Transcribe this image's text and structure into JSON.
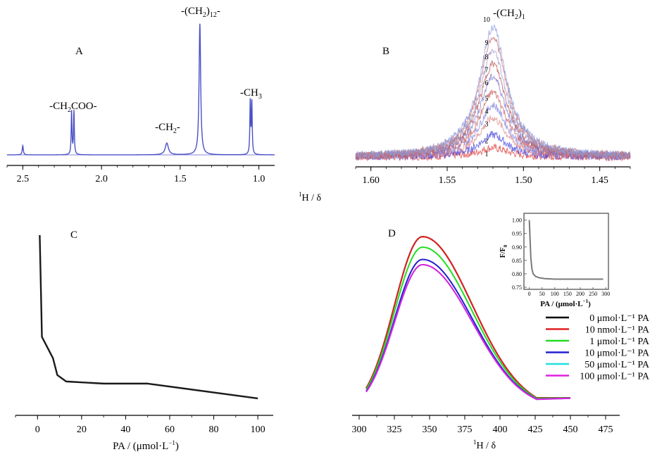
{
  "panels": {
    "A": {
      "label": "A",
      "type": "line",
      "peak_labels": [
        {
          "pre": "-CH",
          "sub1": "2",
          "mid": "COO-",
          "sub2": "",
          "post": "",
          "x": 2.18
        },
        {
          "pre": "-CH",
          "sub1": "2",
          "mid": "-",
          "sub2": "",
          "post": "",
          "x": 1.58
        },
        {
          "pre": "-(CH",
          "sub1": "2",
          "mid": ")",
          "sub2": "12",
          "post": "-",
          "x": 1.37
        },
        {
          "pre": "-CH",
          "sub1": "3",
          "mid": "",
          "sub2": "",
          "post": "",
          "x": 1.05
        }
      ],
      "peaks": [
        {
          "x": 2.5,
          "h": 0.07,
          "w": 0.004
        },
        {
          "x": 2.19,
          "h": 0.33,
          "w": 0.003
        },
        {
          "x": 2.175,
          "h": 0.33,
          "w": 0.003
        },
        {
          "x": 1.585,
          "h": 0.09,
          "w": 0.012
        },
        {
          "x": 1.375,
          "h": 1.0,
          "w": 0.006
        },
        {
          "x": 1.055,
          "h": 0.4,
          "w": 0.003
        },
        {
          "x": 1.045,
          "h": 0.4,
          "w": 0.003
        }
      ],
      "xlim": [
        2.6,
        0.9
      ],
      "ylim": [
        0,
        1.02
      ],
      "xticks": [
        2.5,
        2.0,
        1.5,
        1.0
      ],
      "xtick_labels": [
        "2.5",
        "2.0",
        "1.5",
        "1.0"
      ],
      "color": "#4a50c6"
    },
    "B": {
      "label": "B",
      "type": "line",
      "title_pre": "-(CH",
      "title_sub": "2",
      "title_post": ")",
      "title_sub2": "1",
      "series_labels": [
        "1",
        "2",
        "3",
        "4",
        "5",
        "6",
        "7",
        "8",
        "9",
        "10"
      ],
      "peak_center": 1.52,
      "peak_width": 0.011,
      "heights": [
        0.07,
        0.17,
        0.3,
        0.4,
        0.5,
        0.62,
        0.72,
        0.82,
        0.93,
        1.0
      ],
      "colors": [
        "#d44",
        "#44d",
        "#d88",
        "#88d",
        "#c66",
        "#77c",
        "#b55",
        "#99c",
        "#c77",
        "#8899dd"
      ],
      "xlim": [
        1.61,
        1.43
      ],
      "ylim": [
        -0.05,
        1.05
      ],
      "xticks": [
        1.6,
        1.55,
        1.5,
        1.45
      ],
      "xtick_labels": [
        "1.60",
        "1.55",
        "1.50",
        "1.45"
      ],
      "xlabel_pre": "1",
      "xlabel_post": "H / δ"
    },
    "C": {
      "label": "C",
      "type": "line",
      "x": [
        1,
        2,
        7,
        9,
        13,
        30,
        50,
        100
      ],
      "y": [
        1.0,
        0.52,
        0.42,
        0.34,
        0.31,
        0.3,
        0.3,
        0.23
      ],
      "xlim": [
        -10,
        107
      ],
      "ylim": [
        0.2,
        1.02
      ],
      "xticks": [
        0,
        20,
        40,
        60,
        80,
        100
      ],
      "xtick_labels": [
        "0",
        "20",
        "40",
        "60",
        "80",
        "100"
      ],
      "xlabel_pre": "PA / (μmol·L",
      "xlabel_sup": "−1",
      "xlabel_post": ")",
      "color": "#1a1a1a"
    },
    "D": {
      "label": "D",
      "type": "line",
      "x_start": 305,
      "x_end": 450,
      "peak": 345,
      "xlim": [
        295,
        485
      ],
      "ylim": [
        0,
        1.05
      ],
      "xticks": [
        300,
        325,
        350,
        375,
        400,
        425,
        450,
        475
      ],
      "xtick_labels": [
        "300",
        "325",
        "350",
        "375",
        "400",
        "425",
        "450",
        "475"
      ],
      "xlabel_pre": "1",
      "xlabel_post": "H / δ",
      "series": [
        {
          "name": "0 μmol·L⁻¹ PA",
          "scale": 1.0,
          "color": "#000000"
        },
        {
          "name": "10 nmol·L⁻¹ PA",
          "scale": 1.0,
          "color": "#e02020"
        },
        {
          "name": "1 μmol·L⁻¹ PA",
          "scale": 0.94,
          "color": "#22dd22"
        },
        {
          "name": "10 μmol·L⁻¹ PA",
          "scale": 0.87,
          "color": "#2020d0"
        },
        {
          "name": "50 μmol·L⁻¹ PA",
          "scale": 0.84,
          "color": "#20e0e0"
        },
        {
          "name": "100 μmol·L⁻¹ PA",
          "scale": 0.84,
          "color": "#e020e0"
        }
      ],
      "inset": {
        "ylabel": "F/F",
        "ylabel_sub": "0",
        "xlabel_pre": "PA / (μmol·L",
        "xlabel_sup": "−1",
        "xlabel_post": ")",
        "x": [
          0,
          3,
          6,
          10,
          15,
          25,
          40,
          60,
          100,
          150,
          200,
          250,
          290
        ],
        "y": [
          1.0,
          0.93,
          0.86,
          0.82,
          0.8,
          0.79,
          0.785,
          0.782,
          0.78,
          0.78,
          0.78,
          0.78,
          0.78
        ],
        "xlim": [
          -10,
          305
        ],
        "ylim": [
          0.75,
          1.02
        ],
        "xticks": [
          0,
          50,
          100,
          150,
          200,
          250,
          300
        ],
        "xtick_labels": [
          "0",
          "50",
          "100",
          "150",
          "200",
          "250",
          "300"
        ],
        "yticks": [
          0.75,
          0.8,
          0.85,
          0.9,
          0.95,
          1.0
        ],
        "ytick_labels": [
          "0.75",
          "0.80",
          "0.85",
          "0.90",
          "0.95",
          "1.00"
        ],
        "color": "#7a7a7a"
      }
    },
    "shared_xlabel_pre": "1",
    "shared_xlabel_post": "H / δ"
  }
}
